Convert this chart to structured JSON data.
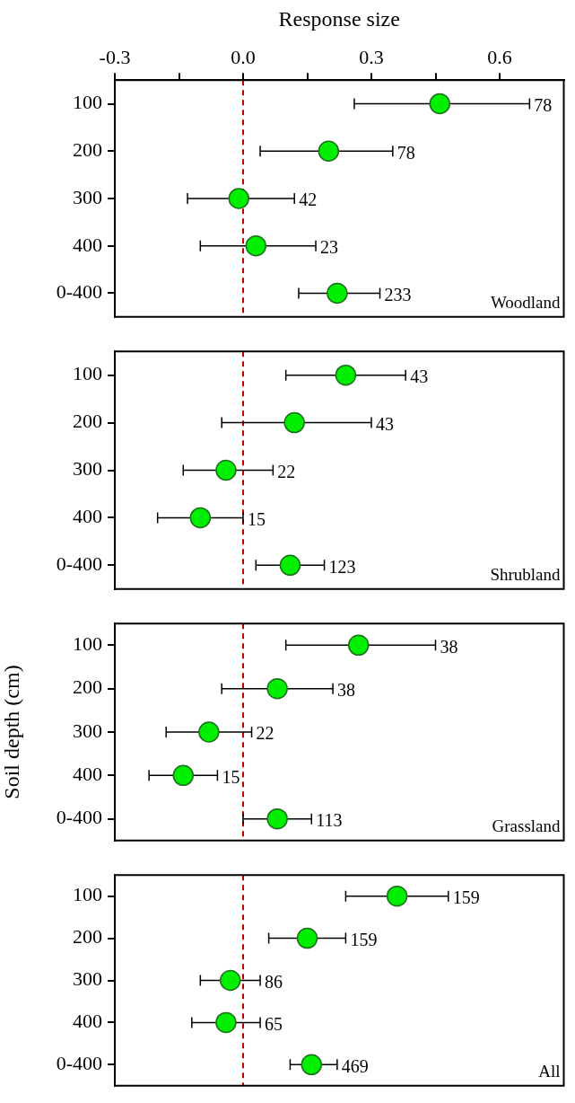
{
  "chart_data": [
    {
      "type": "scatter",
      "orientation": "horizontal",
      "xlabel": "Response size",
      "categories": [
        "100",
        "200",
        "300",
        "400",
        "0-400"
      ],
      "values": [
        0.46,
        0.2,
        -0.01,
        0.03,
        0.22
      ],
      "errors": [
        [
          0.26,
          0.67
        ],
        [
          0.04,
          0.35
        ],
        [
          -0.13,
          0.12
        ],
        [
          -0.1,
          0.17
        ],
        [
          0.13,
          0.32
        ]
      ],
      "color": "#00ee00",
      "marker": "circle",
      "xlim": [
        -0.3,
        0.75
      ],
      "xticks": [
        -0.3,
        {
          "value": -0.15,
          "label": null
        },
        {
          "value": 0,
          "label": "0.0"
        },
        {
          "value": 0.15,
          "label": null
        },
        0.3,
        {
          "value": 0.45,
          "label": null
        },
        0.6
      ],
      "grid": false,
      "legend": false,
      "ref_lines": [
        {
          "axis": "x",
          "value": 0,
          "color": "#c00000",
          "line_style": "dashed"
        }
      ],
      "annotations": [
        "Woodland",
        {
          "text": "78",
          "x": 0.67,
          "y": "100"
        },
        {
          "text": "78",
          "x": 0.35,
          "y": "200"
        },
        {
          "text": "42",
          "x": 0.12,
          "y": "300"
        },
        {
          "text": "23",
          "x": 0.17,
          "y": "400"
        },
        {
          "text": "233",
          "x": 0.32,
          "y": "0-400"
        }
      ]
    },
    {
      "type": "scatter",
      "orientation": "horizontal",
      "categories": [
        "100",
        "200",
        "300",
        "400",
        "0-400"
      ],
      "values": [
        0.24,
        0.12,
        -0.04,
        -0.1,
        0.11
      ],
      "errors": [
        [
          0.1,
          0.38
        ],
        [
          -0.05,
          0.3
        ],
        [
          -0.14,
          0.07
        ],
        [
          -0.2,
          0
        ],
        [
          0.03,
          0.19
        ]
      ],
      "color": "#00ee00",
      "marker": "circle",
      "xlim": [
        -0.3,
        0.75
      ],
      "tick_labels": "y",
      "grid": false,
      "legend": false,
      "ref_lines": [
        {
          "axis": "x",
          "value": 0,
          "color": "#c00000",
          "line_style": "dashed"
        }
      ],
      "annotations": [
        "Shrubland",
        {
          "text": "43",
          "x": 0.38,
          "y": "100"
        },
        {
          "text": "43",
          "x": 0.3,
          "y": "200"
        },
        {
          "text": "22",
          "x": 0.07,
          "y": "300"
        },
        {
          "text": "15",
          "x": 0,
          "y": "400"
        },
        {
          "text": "123",
          "x": 0.19,
          "y": "0-400"
        }
      ]
    },
    {
      "type": "scatter",
      "orientation": "horizontal",
      "ylabel": "Soil depth (cm)",
      "categories": [
        "100",
        "200",
        "300",
        "400",
        "0-400"
      ],
      "values": [
        0.27,
        0.08,
        -0.08,
        -0.14,
        0.08
      ],
      "errors": [
        [
          0.1,
          0.45
        ],
        [
          -0.05,
          0.21
        ],
        [
          -0.18,
          0.02
        ],
        [
          -0.22,
          -0.06
        ],
        [
          0,
          0.16
        ]
      ],
      "color": "#00ee00",
      "marker": "circle",
      "xlim": [
        -0.3,
        0.75
      ],
      "tick_labels": "y",
      "grid": false,
      "legend": false,
      "ref_lines": [
        {
          "axis": "x",
          "value": 0,
          "color": "#c00000",
          "line_style": "dashed"
        }
      ],
      "annotations": [
        "Grassland",
        {
          "text": "38",
          "x": 0.45,
          "y": "100"
        },
        {
          "text": "38",
          "x": 0.21,
          "y": "200"
        },
        {
          "text": "22",
          "x": 0.02,
          "y": "300"
        },
        {
          "text": "15",
          "x": -0.06,
          "y": "400"
        },
        {
          "text": "113",
          "x": 0.16,
          "y": "0-400"
        }
      ]
    },
    {
      "type": "scatter",
      "orientation": "horizontal",
      "categories": [
        "100",
        "200",
        "300",
        "400",
        "0-400"
      ],
      "values": [
        0.36,
        0.15,
        -0.03,
        -0.04,
        0.16
      ],
      "errors": [
        [
          0.24,
          0.48
        ],
        [
          0.06,
          0.24
        ],
        [
          -0.1,
          0.04
        ],
        [
          -0.12,
          0.04
        ],
        [
          0.11,
          0.22
        ]
      ],
      "color": "#00ee00",
      "marker": "circle",
      "xlim": [
        -0.3,
        0.75
      ],
      "tick_labels": "y",
      "grid": false,
      "legend": false,
      "ref_lines": [
        {
          "axis": "x",
          "value": 0,
          "color": "#c00000",
          "line_style": "dashed"
        }
      ],
      "annotations": [
        "All",
        {
          "text": "159",
          "x": 0.48,
          "y": "100"
        },
        {
          "text": "159",
          "x": 0.24,
          "y": "200"
        },
        {
          "text": "86",
          "x": 0.04,
          "y": "300"
        },
        {
          "text": "65",
          "x": 0.04,
          "y": "400"
        },
        {
          "text": "469",
          "x": 0.22,
          "y": "0-400"
        }
      ]
    }
  ]
}
